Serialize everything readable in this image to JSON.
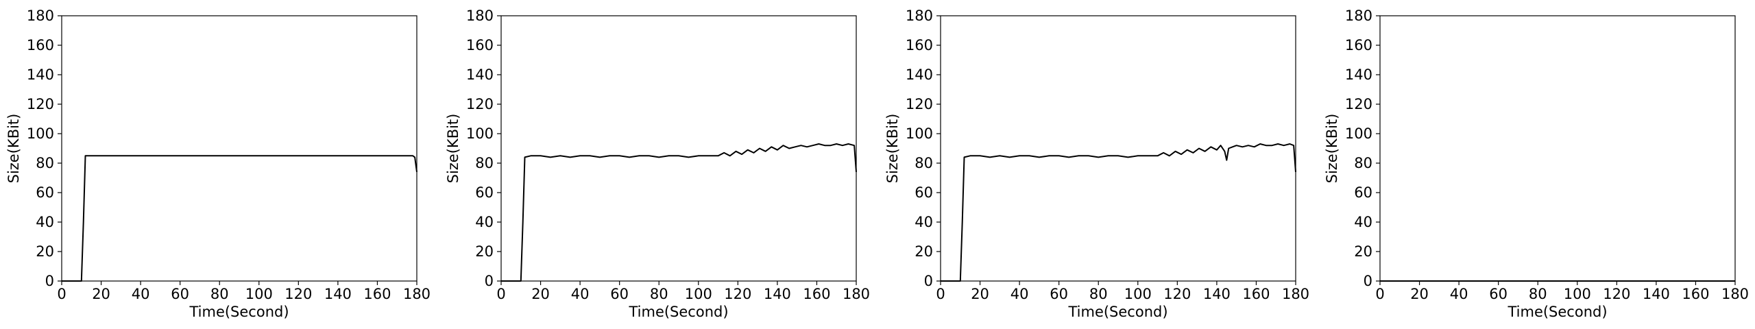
{
  "chart_data": [
    {
      "type": "line",
      "title": "",
      "xlabel": "Time(Second)",
      "ylabel": "Size(KBit)",
      "xlim": [
        0,
        180
      ],
      "ylim": [
        0,
        180
      ],
      "xticks": [
        "0",
        "20",
        "40",
        "60",
        "80",
        "100",
        "120",
        "140",
        "160",
        "180"
      ],
      "yticks": [
        "0",
        "20",
        "40",
        "60",
        "80",
        "100",
        "120",
        "140",
        "160",
        "180"
      ],
      "grid": false,
      "series": [
        {
          "color": "#000000",
          "x": [
            0,
            5,
            10,
            11,
            12,
            15,
            20,
            30,
            40,
            50,
            60,
            70,
            80,
            90,
            100,
            110,
            120,
            130,
            140,
            150,
            160,
            170,
            178,
            179,
            180
          ],
          "y": [
            0,
            0,
            0,
            40,
            85,
            85,
            85,
            85,
            85,
            85,
            85,
            85,
            85,
            85,
            85,
            85,
            85,
            85,
            85,
            85,
            85,
            85,
            85,
            84,
            74
          ]
        }
      ]
    },
    {
      "type": "line",
      "title": "",
      "xlabel": "Time(Second)",
      "ylabel": "Size(KBit)",
      "xlim": [
        0,
        180
      ],
      "ylim": [
        0,
        180
      ],
      "xticks": [
        "0",
        "20",
        "40",
        "60",
        "80",
        "100",
        "120",
        "140",
        "160",
        "180"
      ],
      "yticks": [
        "0",
        "20",
        "40",
        "60",
        "80",
        "100",
        "120",
        "140",
        "160",
        "180"
      ],
      "grid": false,
      "series": [
        {
          "color": "#000000",
          "x": [
            0,
            5,
            10,
            11,
            12,
            15,
            20,
            25,
            30,
            35,
            40,
            45,
            50,
            55,
            60,
            65,
            70,
            75,
            80,
            85,
            90,
            95,
            100,
            105,
            110,
            113,
            116,
            119,
            122,
            125,
            128,
            131,
            134,
            137,
            140,
            143,
            146,
            149,
            152,
            155,
            158,
            161,
            164,
            167,
            170,
            173,
            176,
            179,
            180
          ],
          "y": [
            0,
            0,
            0,
            40,
            84,
            85,
            85,
            84,
            85,
            84,
            85,
            85,
            84,
            85,
            85,
            84,
            85,
            85,
            84,
            85,
            85,
            84,
            85,
            85,
            85,
            87,
            85,
            88,
            86,
            89,
            87,
            90,
            88,
            91,
            89,
            92,
            90,
            91,
            92,
            91,
            92,
            93,
            92,
            92,
            93,
            92,
            93,
            92,
            74
          ]
        }
      ]
    },
    {
      "type": "line",
      "title": "",
      "xlabel": "Time(Second)",
      "ylabel": "Size(KBit)",
      "xlim": [
        0,
        180
      ],
      "ylim": [
        0,
        180
      ],
      "xticks": [
        "0",
        "20",
        "40",
        "60",
        "80",
        "100",
        "120",
        "140",
        "160",
        "180"
      ],
      "yticks": [
        "0",
        "20",
        "40",
        "60",
        "80",
        "100",
        "120",
        "140",
        "160",
        "180"
      ],
      "grid": false,
      "series": [
        {
          "color": "#000000",
          "x": [
            0,
            5,
            10,
            11,
            12,
            15,
            20,
            25,
            30,
            35,
            40,
            45,
            50,
            55,
            60,
            65,
            70,
            75,
            80,
            85,
            90,
            95,
            100,
            105,
            110,
            113,
            116,
            119,
            122,
            125,
            128,
            131,
            134,
            137,
            140,
            142,
            144,
            145,
            146,
            148,
            150,
            153,
            156,
            159,
            162,
            165,
            168,
            171,
            174,
            177,
            179,
            180
          ],
          "y": [
            0,
            0,
            0,
            40,
            84,
            85,
            85,
            84,
            85,
            84,
            85,
            85,
            84,
            85,
            85,
            84,
            85,
            85,
            84,
            85,
            85,
            84,
            85,
            85,
            85,
            87,
            85,
            88,
            86,
            89,
            87,
            90,
            88,
            91,
            89,
            92,
            88,
            82,
            90,
            91,
            92,
            91,
            92,
            91,
            93,
            92,
            92,
            93,
            92,
            93,
            92,
            74
          ]
        }
      ]
    },
    {
      "type": "line",
      "title": "",
      "xlabel": "Time(Second)",
      "ylabel": "Size(KBit)",
      "xlim": [
        0,
        180
      ],
      "ylim": [
        0,
        180
      ],
      "xticks": [
        "0",
        "20",
        "40",
        "60",
        "80",
        "100",
        "120",
        "140",
        "160",
        "180"
      ],
      "yticks": [
        "0",
        "20",
        "40",
        "60",
        "80",
        "100",
        "120",
        "140",
        "160",
        "180"
      ],
      "grid": false,
      "series": [
        {
          "color": "#000000",
          "x": [
            0,
            20,
            40,
            60,
            80,
            100,
            120,
            140,
            160,
            180
          ],
          "y": [
            0,
            0,
            0,
            0,
            0,
            0,
            0,
            0,
            0,
            0
          ]
        }
      ]
    }
  ]
}
